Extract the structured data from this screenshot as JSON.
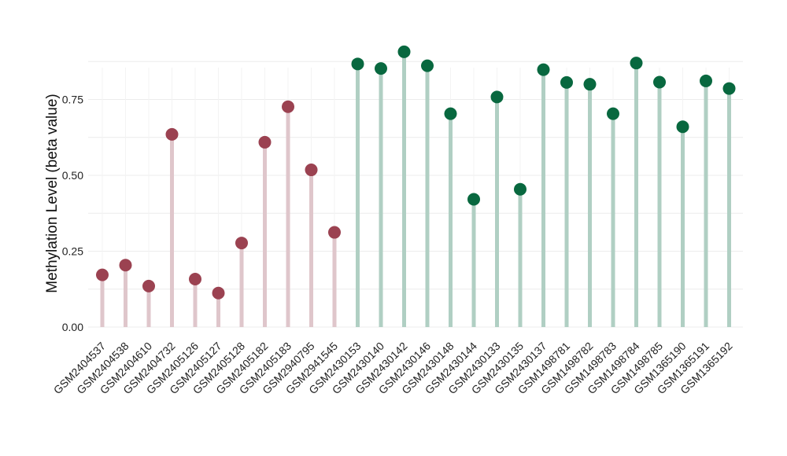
{
  "chart_data": {
    "type": "lollipop",
    "ylabel": "Methylation Level (beta value)",
    "xlabel": "",
    "title": "",
    "ylim": [
      0,
      0.93
    ],
    "yticks": [
      "0.00",
      "0.25",
      "0.50",
      "0.75"
    ],
    "ytick_values": [
      0,
      0.25,
      0.5,
      0.75
    ],
    "grid": true,
    "categories": [
      "GSM2404537",
      "GSM2404538",
      "GSM2404610",
      "GSM2404732",
      "GSM2405126",
      "GSM2405127",
      "GSM2405128",
      "GSM2405182",
      "GSM2405183",
      "GSM2940795",
      "GSM2941545",
      "GSM2430153",
      "GSM2430140",
      "GSM2430142",
      "GSM2430146",
      "GSM2430148",
      "GSM2430144",
      "GSM2430133",
      "GSM2430135",
      "GSM2430137",
      "GSM1498781",
      "GSM1498782",
      "GSM1498783",
      "GSM1498784",
      "GSM1498785",
      "GSM1365190",
      "GSM1365191",
      "GSM1365192"
    ],
    "values": [
      0.172,
      0.204,
      0.135,
      0.635,
      0.158,
      0.112,
      0.277,
      0.609,
      0.726,
      0.518,
      0.312,
      0.867,
      0.852,
      0.907,
      0.861,
      0.703,
      0.421,
      0.758,
      0.454,
      0.848,
      0.806,
      0.8,
      0.703,
      0.87,
      0.807,
      0.66,
      0.811,
      0.786
    ],
    "groups": [
      "a",
      "a",
      "a",
      "a",
      "a",
      "a",
      "a",
      "a",
      "a",
      "a",
      "a",
      "b",
      "b",
      "b",
      "b",
      "b",
      "b",
      "b",
      "b",
      "b",
      "b",
      "b",
      "b",
      "b",
      "b",
      "b",
      "b",
      "b"
    ],
    "colors": {
      "a": {
        "point": "#9b4251",
        "stem": "#dfc6cb"
      },
      "b": {
        "point": "#08683f",
        "stem": "#b0cfc3"
      },
      "grid": "#ececec"
    }
  }
}
